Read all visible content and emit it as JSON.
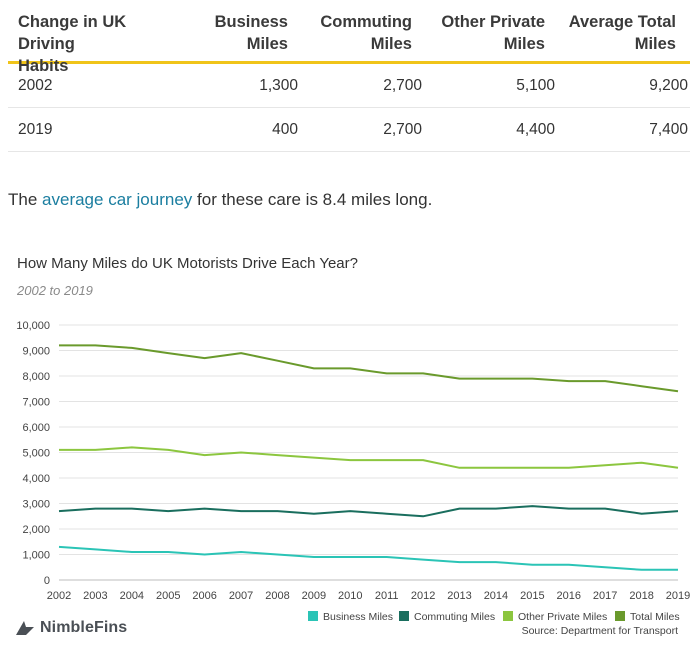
{
  "table": {
    "headers": [
      [
        "Change in UK Driving",
        "Habits"
      ],
      [
        "Business",
        "Miles"
      ],
      [
        "Commuting",
        "Miles"
      ],
      [
        "Other Private",
        "Miles"
      ],
      [
        "Average Total",
        "Miles"
      ]
    ],
    "rows": [
      [
        "2002",
        "1,300",
        "2,700",
        "5,100",
        "9,200"
      ],
      [
        "2019",
        "400",
        "2,700",
        "4,400",
        "7,400"
      ]
    ],
    "accent_color": "#f0c419"
  },
  "sentence": {
    "before": "The ",
    "link": "average car journey",
    "after": " for these care is 8.4 miles long."
  },
  "brand": {
    "name": "NimbleFins"
  },
  "chart_data": {
    "type": "line",
    "title": "How Many Miles do UK Motorists Drive Each Year?",
    "subtitle": "2002 to 2019",
    "xlabel": "",
    "ylabel": "",
    "ylim": [
      0,
      10000
    ],
    "yticks": [
      0,
      1000,
      2000,
      3000,
      4000,
      5000,
      6000,
      7000,
      8000,
      9000,
      10000
    ],
    "ytick_labels": [
      "0",
      "1,000",
      "2,000",
      "3,000",
      "4,000",
      "5,000",
      "6,000",
      "7,000",
      "8,000",
      "9,000",
      "10,000"
    ],
    "x": [
      "2002",
      "2003",
      "2004",
      "2005",
      "2006",
      "2007",
      "2008",
      "2009",
      "2010",
      "2011",
      "2012",
      "2013",
      "2014",
      "2015",
      "2016",
      "2017",
      "2018",
      "2019"
    ],
    "grid": true,
    "legend_position": "bottom-right",
    "source": "Source: Department for Transport",
    "series": [
      {
        "name": "Business Miles",
        "color": "#2bc4b6",
        "values": [
          1300,
          1200,
          1100,
          1100,
          1000,
          1100,
          1000,
          900,
          900,
          900,
          800,
          700,
          700,
          600,
          600,
          500,
          400,
          400
        ]
      },
      {
        "name": "Commuting Miles",
        "color": "#1a6e5e",
        "values": [
          2700,
          2800,
          2800,
          2700,
          2800,
          2700,
          2700,
          2600,
          2700,
          2600,
          2500,
          2800,
          2800,
          2900,
          2800,
          2800,
          2600,
          2700
        ]
      },
      {
        "name": "Other Private Miles",
        "color": "#8cc63f",
        "values": [
          5100,
          5100,
          5200,
          5100,
          4900,
          5000,
          4900,
          4800,
          4700,
          4700,
          4700,
          4400,
          4400,
          4400,
          4400,
          4500,
          4600,
          4400
        ]
      },
      {
        "name": "Total Miles",
        "color": "#6a9a2c",
        "values": [
          9200,
          9200,
          9100,
          8900,
          8700,
          8900,
          8600,
          8300,
          8300,
          8100,
          8100,
          7900,
          7900,
          7900,
          7800,
          7800,
          7600,
          7400
        ]
      }
    ]
  }
}
